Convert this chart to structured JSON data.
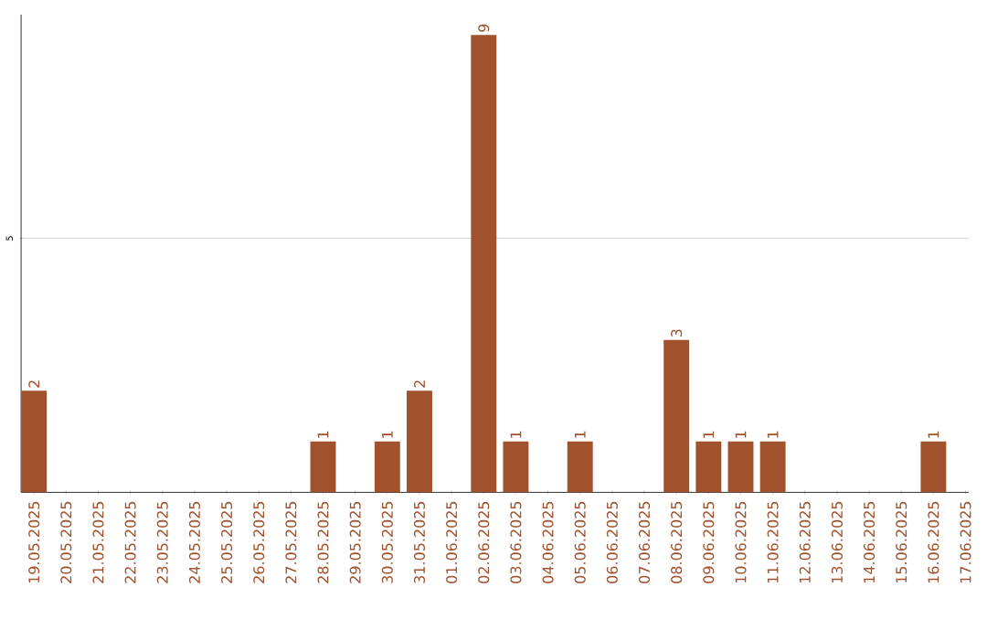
{
  "chart_data": {
    "type": "bar",
    "categories": [
      "19.05.2025",
      "20.05.2025",
      "21.05.2025",
      "22.05.2025",
      "23.05.2025",
      "24.05.2025",
      "25.05.2025",
      "26.05.2025",
      "27.05.2025",
      "28.05.2025",
      "29.05.2025",
      "30.05.2025",
      "31.05.2025",
      "01.06.2025",
      "02.06.2025",
      "03.06.2025",
      "04.06.2025",
      "05.06.2025",
      "06.06.2025",
      "07.06.2025",
      "08.06.2025",
      "09.06.2025",
      "10.06.2025",
      "11.06.2025",
      "12.06.2025",
      "13.06.2025",
      "14.06.2025",
      "15.06.2025",
      "16.06.2025",
      "17.06.2025"
    ],
    "values": [
      2,
      0,
      0,
      0,
      0,
      0,
      0,
      0,
      0,
      1,
      0,
      1,
      2,
      0,
      9,
      1,
      0,
      1,
      0,
      0,
      3,
      1,
      1,
      1,
      0,
      0,
      0,
      0,
      1,
      0
    ],
    "value_labels": [
      "2",
      null,
      null,
      null,
      null,
      null,
      null,
      null,
      null,
      "1",
      null,
      "1",
      "2",
      null,
      "9",
      "1",
      null,
      "1",
      null,
      null,
      "3",
      "1",
      "1",
      "1",
      null,
      null,
      null,
      null,
      "1",
      null
    ],
    "color": "#a0522d",
    "ylim": [
      0,
      9.4
    ],
    "yticks": [
      5
    ],
    "grid": "y"
  }
}
